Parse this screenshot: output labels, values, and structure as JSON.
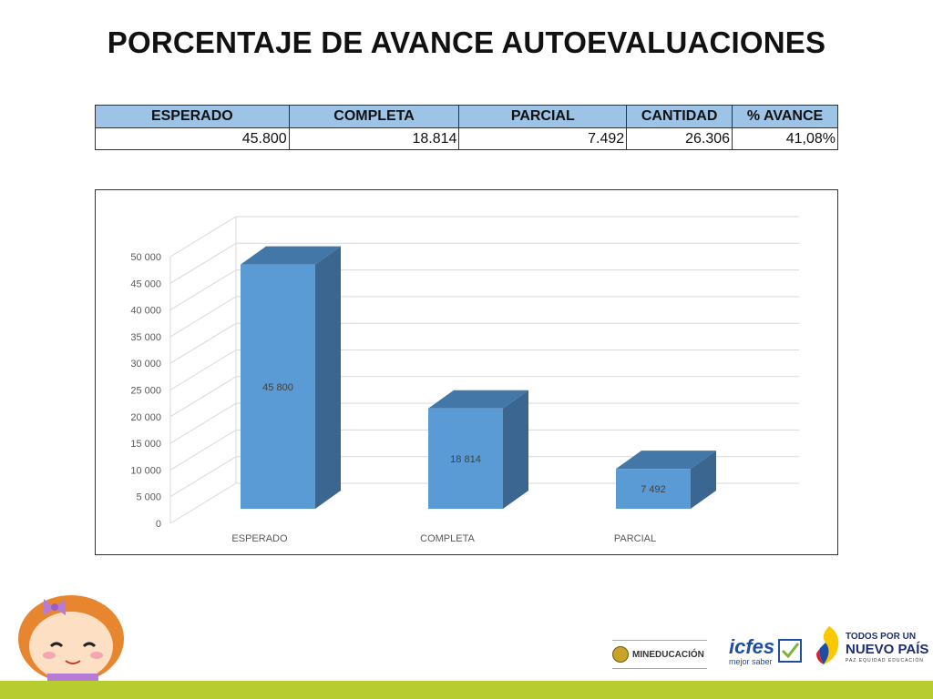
{
  "slide": {
    "title": "PORCENTAJE DE AVANCE AUTOEVALUACIONES"
  },
  "table": {
    "headers": [
      "ESPERADO",
      "COMPLETA",
      "PARCIAL",
      "CANTIDAD",
      "% AVANCE"
    ],
    "values": [
      "45.800",
      "18.814",
      "7.492",
      "26.306",
      "41,08%"
    ]
  },
  "chart_data": {
    "type": "bar",
    "style": "3d-column",
    "categories": [
      "ESPERADO",
      "COMPLETA",
      "PARCIAL"
    ],
    "values": [
      45800,
      18814,
      7492
    ],
    "data_labels": [
      "45 800",
      "18 814",
      "7 492"
    ],
    "y_ticks": [
      "0",
      "5 000",
      "10 000",
      "15 000",
      "20 000",
      "25 000",
      "30 000",
      "35 000",
      "40 000",
      "45 000",
      "50 000"
    ],
    "ylim": [
      0,
      50000
    ],
    "grid": true,
    "legend": "none",
    "colors": {
      "front": "#5b9bd5",
      "side": "#3a6690",
      "top": "#4277a8",
      "grid": "#d9d9d9"
    }
  },
  "logos": {
    "mineducacion": "MINEDUCACIÓN",
    "icfes": "icfes",
    "icfes_tagline": "mejor saber",
    "todos_line1": "TODOS POR UN",
    "todos_line2": "NUEVO PAÍS",
    "todos_line3": "PAZ  EQUIDAD  EDUCACIÓN"
  },
  "accent_color": "#b6cc2f"
}
